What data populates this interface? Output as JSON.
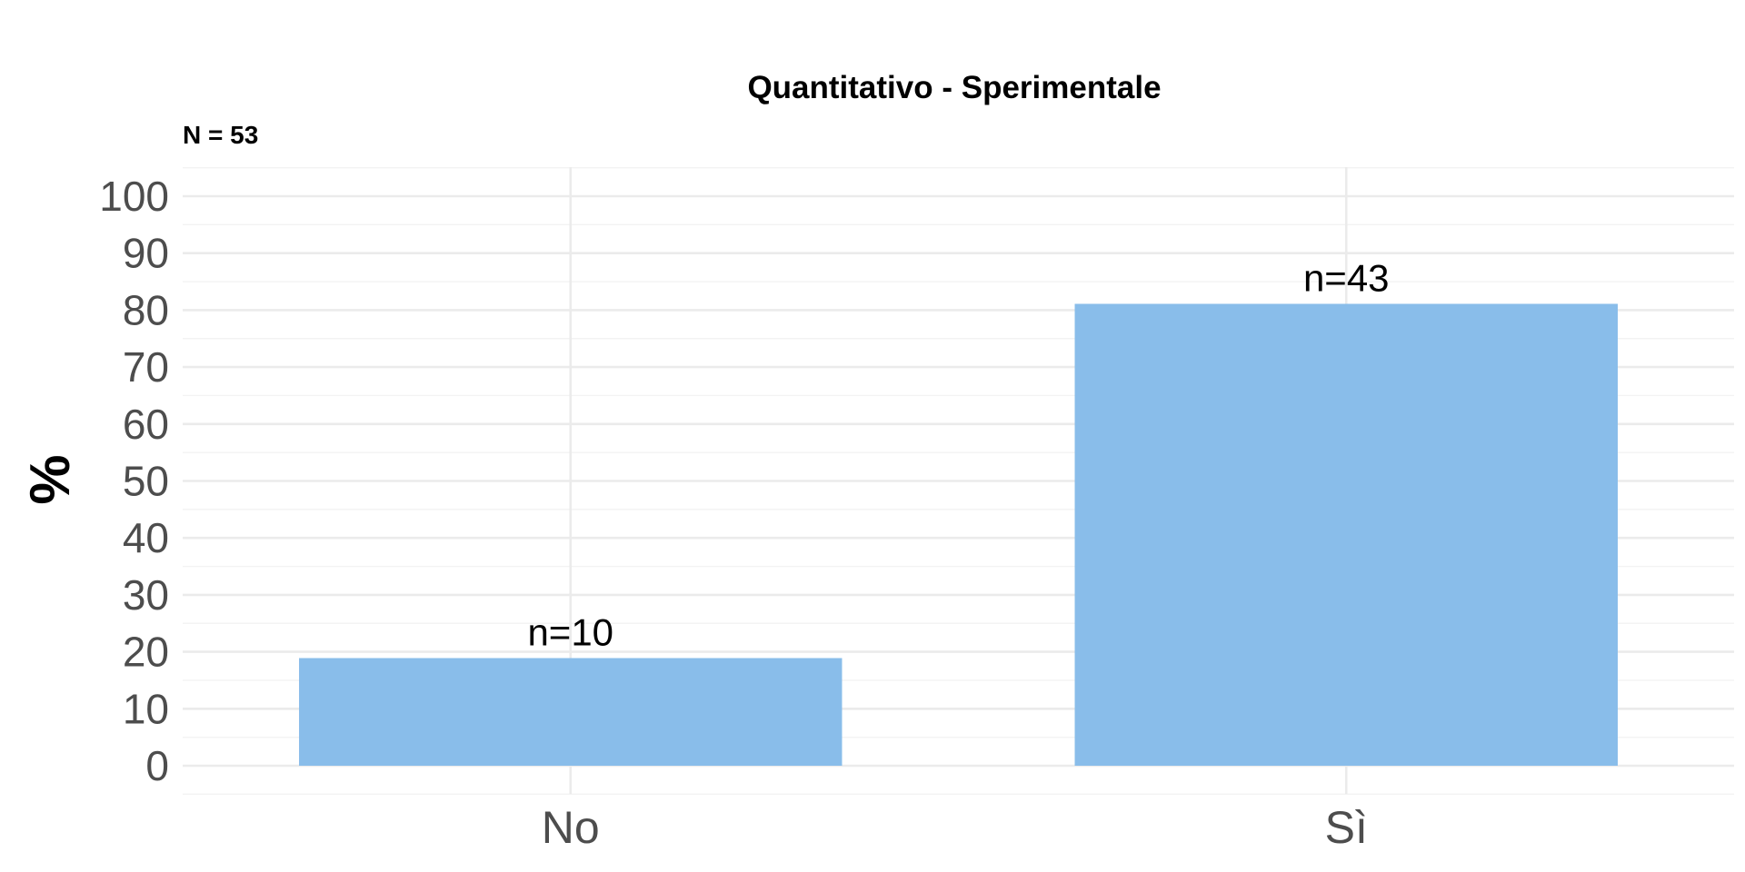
{
  "chart_data": {
    "type": "bar",
    "title": "Quantitativo - Sperimentale",
    "subtitle": "N = 53",
    "xlabel": "",
    "ylabel": "%",
    "categories": [
      "No",
      "Sì"
    ],
    "values": [
      18.9,
      81.1
    ],
    "data_labels": [
      "n=10",
      "n=43"
    ],
    "ylim": [
      0,
      100
    ],
    "yticks": [
      0,
      10,
      20,
      30,
      40,
      50,
      60,
      70,
      80,
      90,
      100
    ],
    "grid": true,
    "legend": "none",
    "bar_color": "#89BDEA"
  }
}
